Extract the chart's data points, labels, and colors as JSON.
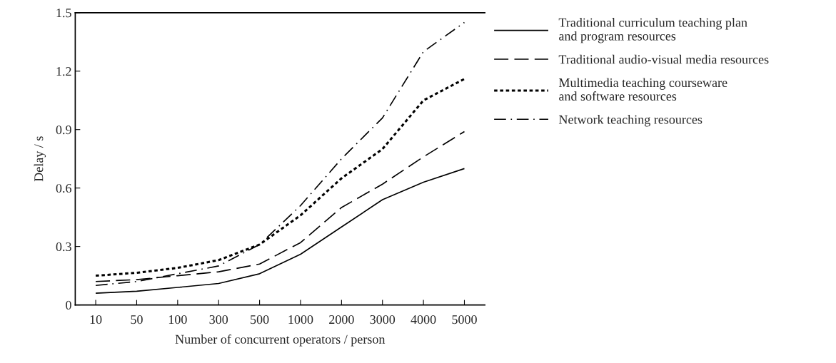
{
  "chart_data": {
    "type": "line",
    "xlabel": "Number of concurrent operators / person",
    "ylabel": "Delay / s",
    "categories": [
      "10",
      "50",
      "100",
      "300",
      "500",
      "1000",
      "2000",
      "3000",
      "4000",
      "5000"
    ],
    "series": [
      {
        "name": "Traditional curriculum teaching plan\nand program resources",
        "color": "#000000",
        "line_style": "solid",
        "values": [
          0.06,
          0.07,
          0.09,
          0.11,
          0.16,
          0.26,
          0.4,
          0.54,
          0.63,
          0.7
        ]
      },
      {
        "name": "Traditional audio-visual media resources",
        "color": "#000000",
        "line_style": "dashed",
        "values": [
          0.12,
          0.13,
          0.15,
          0.17,
          0.21,
          0.32,
          0.5,
          0.62,
          0.76,
          0.89
        ]
      },
      {
        "name": "Multimedia teaching courseware\nand software resources",
        "color": "#000000",
        "line_style": "dotted",
        "values": [
          0.15,
          0.165,
          0.19,
          0.23,
          0.31,
          0.46,
          0.65,
          0.8,
          1.05,
          1.16
        ]
      },
      {
        "name": "Network teaching resources",
        "color": "#000000",
        "line_style": "dashdot",
        "values": [
          0.1,
          0.12,
          0.16,
          0.2,
          0.31,
          0.51,
          0.75,
          0.96,
          1.3,
          1.45
        ]
      }
    ],
    "ylim": [
      0,
      1.5
    ],
    "yticks": [
      {
        "value": 0,
        "label": "0"
      },
      0.3,
      0.6,
      0.9,
      1.2,
      1.5
    ],
    "grid": false,
    "legend": "right",
    "marker": "none"
  }
}
